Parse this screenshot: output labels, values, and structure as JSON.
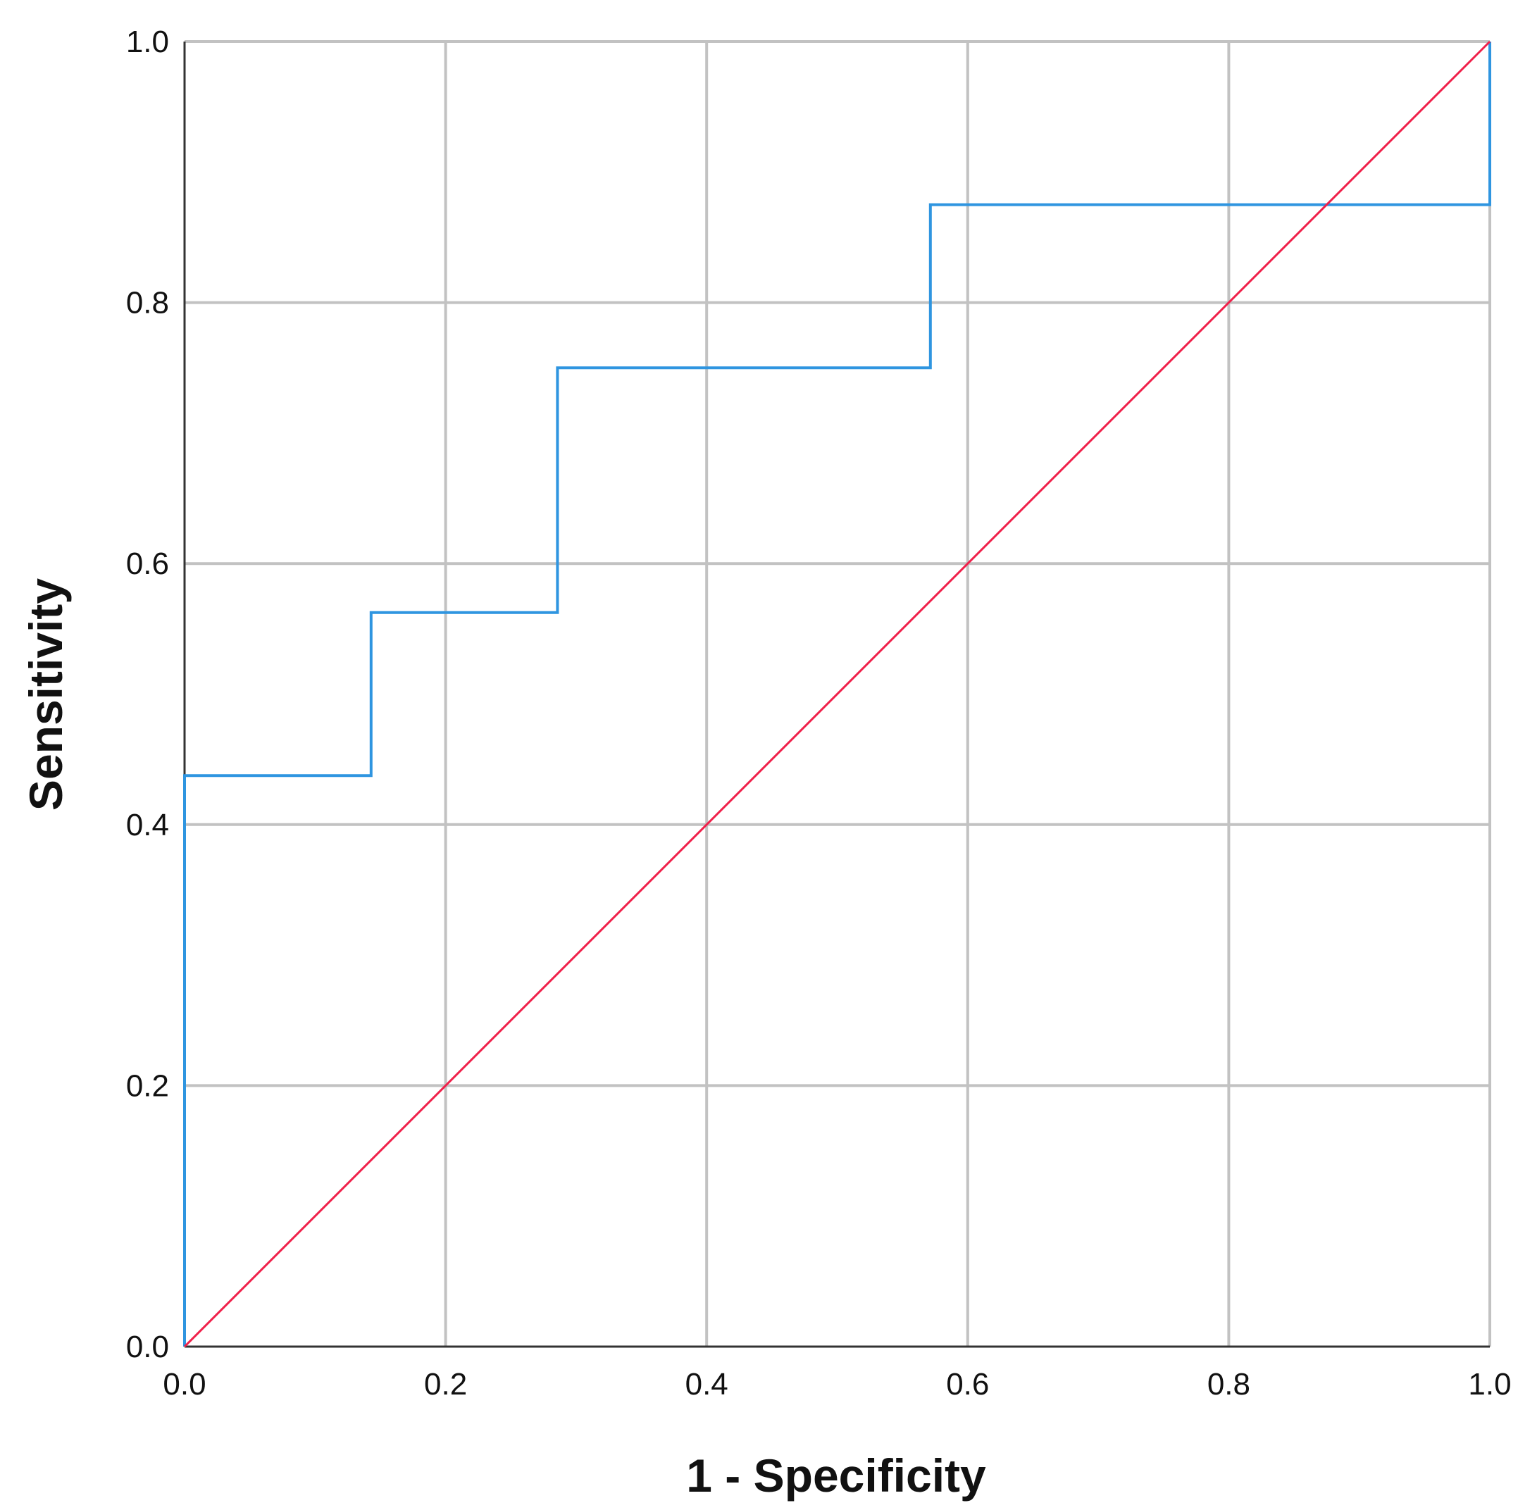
{
  "chart_data": {
    "type": "line",
    "title": "",
    "xlabel": "1 - Specificity",
    "ylabel": "Sensitivity",
    "xlim": [
      0,
      1
    ],
    "ylim": [
      0,
      1
    ],
    "grid": true,
    "legend": "none",
    "x_ticks": [
      "0.0",
      "0.2",
      "0.4",
      "0.6",
      "0.8",
      "1.0"
    ],
    "y_ticks": [
      "0.0",
      "0.2",
      "0.4",
      "0.6",
      "0.8",
      "1.0"
    ],
    "series": [
      {
        "color": "#2F95E0",
        "step": true,
        "points": [
          [
            0,
            0
          ],
          [
            0,
            0.4375
          ],
          [
            0.1429,
            0.4375
          ],
          [
            0.1429,
            0.5625
          ],
          [
            0.2857,
            0.5625
          ],
          [
            0.2857,
            0.75
          ],
          [
            0.5714,
            0.75
          ],
          [
            0.5714,
            0.875
          ],
          [
            1.0,
            0.875
          ],
          [
            1.0,
            1.0
          ]
        ]
      },
      {
        "color": "#F0204A",
        "step": false,
        "points": [
          [
            0,
            0
          ],
          [
            1,
            1
          ]
        ]
      }
    ]
  }
}
